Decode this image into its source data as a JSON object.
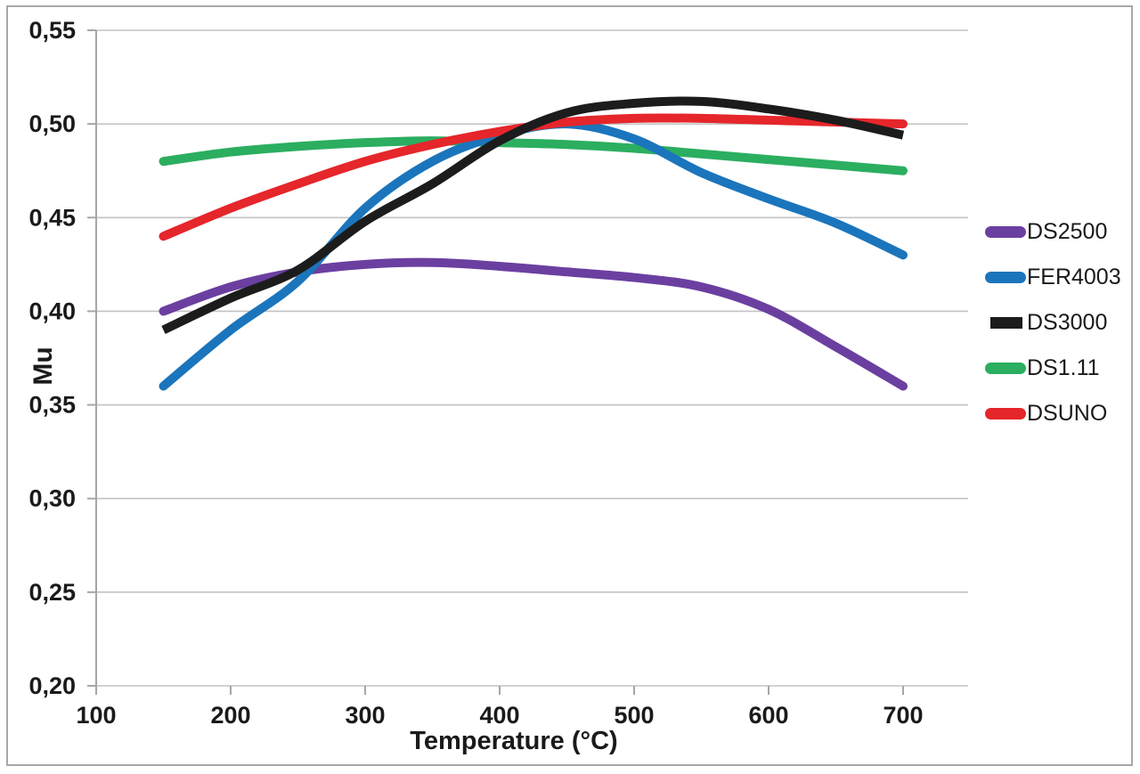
{
  "chart_data": {
    "type": "line",
    "title": "",
    "xlabel": "Temperature (°C)",
    "ylabel": "Mu",
    "x": [
      150,
      200,
      250,
      300,
      350,
      400,
      450,
      500,
      550,
      600,
      650,
      700
    ],
    "xlim": [
      100,
      750
    ],
    "ylim": [
      0.2,
      0.55
    ],
    "x_ticks": [
      100,
      200,
      300,
      400,
      500,
      600,
      700
    ],
    "x_tick_labels": [
      "100",
      "200",
      "300",
      "400",
      "500",
      "600",
      "700"
    ],
    "y_ticks": [
      0.2,
      0.25,
      0.3,
      0.35,
      0.4,
      0.45,
      0.5,
      0.55
    ],
    "y_tick_labels": [
      "0,20",
      "0,25",
      "0,30",
      "0,35",
      "0,40",
      "0,45",
      "0,50",
      "0,55"
    ],
    "grid": "horizontal",
    "legend_position": "right",
    "series": [
      {
        "name": "DS2500",
        "color": "#6b3fa0",
        "linecap": "round",
        "values": [
          0.4,
          0.413,
          0.421,
          0.425,
          0.426,
          0.424,
          0.421,
          0.418,
          0.413,
          0.401,
          0.381,
          0.36
        ]
      },
      {
        "name": "FER4003",
        "color": "#1b75bc",
        "linecap": "round",
        "values": [
          0.36,
          0.39,
          0.416,
          0.455,
          0.48,
          0.494,
          0.5,
          0.492,
          0.474,
          0.46,
          0.447,
          0.43
        ]
      },
      {
        "name": "DS3000",
        "color": "#1c1c1c",
        "linecap": "butt",
        "values": [
          0.39,
          0.407,
          0.422,
          0.448,
          0.468,
          0.491,
          0.506,
          0.511,
          0.512,
          0.508,
          0.502,
          0.494
        ]
      },
      {
        "name": "DS1.11",
        "color": "#2bae60",
        "linecap": "round",
        "values": [
          0.48,
          0.485,
          0.488,
          0.49,
          0.491,
          0.49,
          0.489,
          0.487,
          0.484,
          0.481,
          0.478,
          0.475
        ]
      },
      {
        "name": "DSUNO",
        "color": "#e5262b",
        "linecap": "round",
        "values": [
          0.44,
          0.455,
          0.468,
          0.48,
          0.489,
          0.496,
          0.501,
          0.503,
          0.503,
          0.502,
          0.501,
          0.5
        ]
      }
    ],
    "draw_order": [
      3,
      0,
      1,
      4,
      2
    ],
    "line_width": 10
  },
  "colors": {
    "gridline": "#c3c3c3",
    "axis": "#a6a6a6",
    "text": "#1a1a1a",
    "frame_border": "#a8a8a8"
  }
}
